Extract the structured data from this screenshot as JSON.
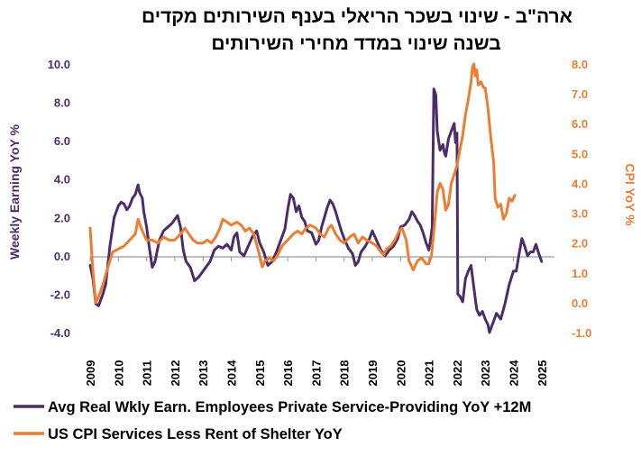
{
  "chart_data": {
    "type": "line",
    "title_lines": [
      "ארה\"ב - שינוי בשכר הריאלי בענף השירותים מקדים",
      "בשנה שינוי במדד מחירי השירותים"
    ],
    "ylabel_left": "Weekly Earning YoY %",
    "ylabel_right": "CPI YoY %",
    "ylim_left": [
      -4,
      10
    ],
    "ylim_right": [
      -1,
      8
    ],
    "yticks_left": [
      "10.0",
      "8.0",
      "6.0",
      "4.0",
      "2.0",
      "0.0",
      "-2.0",
      "-4.0"
    ],
    "yticks_right": [
      "8.0",
      "7.0",
      "6.0",
      "5.0",
      "4.0",
      "3.0",
      "2.0",
      "1.0",
      "0.0",
      "-1.0"
    ],
    "xlim": [
      2009,
      2025.3
    ],
    "xticks": [
      "2009",
      "2010",
      "2011",
      "2012",
      "2013",
      "2014",
      "2015",
      "2016",
      "2017",
      "2018",
      "2019",
      "2020",
      "2021",
      "2022",
      "2023",
      "2024",
      "2025"
    ],
    "grid": false,
    "legend_position": "bottom",
    "series": [
      {
        "name": "Avg Real Wkly Earn. Employees Private Service-Providing YoY +12M",
        "axis": "left",
        "color": "#4a2d6b",
        "points": [
          [
            2009.0,
            -0.5
          ],
          [
            2009.1,
            -1.2
          ],
          [
            2009.2,
            -2.5
          ],
          [
            2009.3,
            -2.6
          ],
          [
            2009.45,
            -2.0
          ],
          [
            2009.55,
            -1.5
          ],
          [
            2009.7,
            0.5
          ],
          [
            2009.85,
            2.0
          ],
          [
            2010.0,
            2.6
          ],
          [
            2010.1,
            2.8
          ],
          [
            2010.2,
            2.7
          ],
          [
            2010.3,
            2.4
          ],
          [
            2010.4,
            2.6
          ],
          [
            2010.5,
            3.0
          ],
          [
            2010.6,
            3.2
          ],
          [
            2010.7,
            3.7
          ],
          [
            2010.75,
            3.3
          ],
          [
            2010.85,
            3.0
          ],
          [
            2010.9,
            2.3
          ],
          [
            2011.0,
            1.5
          ],
          [
            2011.1,
            0.4
          ],
          [
            2011.2,
            -0.6
          ],
          [
            2011.3,
            -0.3
          ],
          [
            2011.45,
            0.8
          ],
          [
            2011.6,
            1.3
          ],
          [
            2011.75,
            1.5
          ],
          [
            2011.9,
            1.7
          ],
          [
            2012.0,
            1.9
          ],
          [
            2012.1,
            2.1
          ],
          [
            2012.2,
            1.5
          ],
          [
            2012.3,
            0.3
          ],
          [
            2012.4,
            -0.3
          ],
          [
            2012.55,
            -0.6
          ],
          [
            2012.7,
            -1.3
          ],
          [
            2012.85,
            -1.1
          ],
          [
            2013.0,
            -0.8
          ],
          [
            2013.1,
            -0.6
          ],
          [
            2013.25,
            -0.3
          ],
          [
            2013.4,
            0.3
          ],
          [
            2013.55,
            0.5
          ],
          [
            2013.7,
            0.4
          ],
          [
            2013.85,
            0.6
          ],
          [
            2014.0,
            0.3
          ],
          [
            2014.1,
            1.0
          ],
          [
            2014.2,
            1.2
          ],
          [
            2014.3,
            0.2
          ],
          [
            2014.45,
            0.0
          ],
          [
            2014.6,
            0.5
          ],
          [
            2014.75,
            1.0
          ],
          [
            2014.9,
            1.3
          ],
          [
            2015.0,
            0.7
          ],
          [
            2015.15,
            0.2
          ],
          [
            2015.3,
            -0.5
          ],
          [
            2015.45,
            -0.3
          ],
          [
            2015.6,
            0.2
          ],
          [
            2015.75,
            0.8
          ],
          [
            2015.9,
            1.4
          ],
          [
            2016.0,
            2.4
          ],
          [
            2016.1,
            3.2
          ],
          [
            2016.2,
            3.0
          ],
          [
            2016.3,
            2.3
          ],
          [
            2016.4,
            2.6
          ],
          [
            2016.5,
            2.0
          ],
          [
            2016.6,
            1.8
          ],
          [
            2016.7,
            1.3
          ],
          [
            2016.85,
            1.2
          ],
          [
            2017.0,
            0.6
          ],
          [
            2017.1,
            0.8
          ],
          [
            2017.2,
            1.5
          ],
          [
            2017.3,
            2.0
          ],
          [
            2017.4,
            2.5
          ],
          [
            2017.5,
            2.9
          ],
          [
            2017.6,
            2.7
          ],
          [
            2017.7,
            2.3
          ],
          [
            2017.8,
            1.8
          ],
          [
            2017.9,
            1.3
          ],
          [
            2018.0,
            0.9
          ],
          [
            2018.15,
            0.4
          ],
          [
            2018.3,
            0.1
          ],
          [
            2018.4,
            -0.5
          ],
          [
            2018.5,
            -0.3
          ],
          [
            2018.6,
            0.2
          ],
          [
            2018.75,
            0.5
          ],
          [
            2018.9,
            0.9
          ],
          [
            2019.0,
            1.3
          ],
          [
            2019.15,
            0.8
          ],
          [
            2019.3,
            0.3
          ],
          [
            2019.45,
            0.0
          ],
          [
            2019.6,
            0.3
          ],
          [
            2019.75,
            0.5
          ],
          [
            2019.9,
            0.9
          ],
          [
            2020.0,
            1.5
          ],
          [
            2020.15,
            1.6
          ],
          [
            2020.3,
            1.9
          ],
          [
            2020.4,
            2.3
          ],
          [
            2020.5,
            2.1
          ],
          [
            2020.6,
            1.8
          ],
          [
            2020.7,
            1.6
          ],
          [
            2020.8,
            1.2
          ],
          [
            2020.9,
            0.7
          ],
          [
            2021.0,
            0.3
          ],
          [
            2021.05,
            0.7
          ],
          [
            2021.12,
            1.5
          ],
          [
            2021.18,
            8.7
          ],
          [
            2021.25,
            8.4
          ],
          [
            2021.3,
            6.5
          ],
          [
            2021.4,
            5.5
          ],
          [
            2021.5,
            5.8
          ],
          [
            2021.55,
            5.4
          ],
          [
            2021.6,
            5.2
          ],
          [
            2021.7,
            6.1
          ],
          [
            2021.8,
            6.5
          ],
          [
            2021.9,
            6.9
          ],
          [
            2021.95,
            5.9
          ],
          [
            2022.0,
            6.4
          ],
          [
            2022.03,
            -2.0
          ],
          [
            2022.1,
            -2.1
          ],
          [
            2022.2,
            -2.4
          ],
          [
            2022.3,
            -1.2
          ],
          [
            2022.4,
            -0.8
          ],
          [
            2022.5,
            -0.5
          ],
          [
            2022.6,
            -1.7
          ],
          [
            2022.7,
            -2.8
          ],
          [
            2022.8,
            -3.1
          ],
          [
            2022.9,
            -2.9
          ],
          [
            2023.0,
            -3.3
          ],
          [
            2023.1,
            -3.6
          ],
          [
            2023.15,
            -4.0
          ],
          [
            2023.25,
            -3.6
          ],
          [
            2023.4,
            -3.0
          ],
          [
            2023.55,
            -3.3
          ],
          [
            2023.7,
            -2.5
          ],
          [
            2023.85,
            -1.5
          ],
          [
            2024.0,
            -0.8
          ],
          [
            2024.1,
            -0.8
          ],
          [
            2024.2,
            0.1
          ],
          [
            2024.3,
            0.9
          ],
          [
            2024.4,
            0.5
          ],
          [
            2024.5,
            0.0
          ],
          [
            2024.6,
            0.2
          ],
          [
            2024.7,
            0.2
          ],
          [
            2024.8,
            0.6
          ],
          [
            2024.9,
            0.1
          ],
          [
            2025.0,
            -0.3
          ]
        ]
      },
      {
        "name": "US CPI  Services Less Rent of Shelter YoY",
        "axis": "right",
        "color": "#ed7d31",
        "points": [
          [
            2009.0,
            2.5
          ],
          [
            2009.08,
            1.3
          ],
          [
            2009.15,
            0.5
          ],
          [
            2009.2,
            0.0
          ],
          [
            2009.3,
            0.2
          ],
          [
            2009.45,
            0.6
          ],
          [
            2009.6,
            1.1
          ],
          [
            2009.8,
            1.7
          ],
          [
            2010.0,
            1.8
          ],
          [
            2010.2,
            1.9
          ],
          [
            2010.4,
            2.1
          ],
          [
            2010.6,
            2.3
          ],
          [
            2010.7,
            2.8
          ],
          [
            2010.85,
            2.4
          ],
          [
            2011.0,
            2.1
          ],
          [
            2011.2,
            2.1
          ],
          [
            2011.4,
            2.0
          ],
          [
            2011.6,
            2.2
          ],
          [
            2011.8,
            2.1
          ],
          [
            2012.0,
            2.1
          ],
          [
            2012.2,
            2.3
          ],
          [
            2012.35,
            2.5
          ],
          [
            2012.5,
            2.3
          ],
          [
            2012.65,
            2.1
          ],
          [
            2012.8,
            2.0
          ],
          [
            2013.0,
            2.0
          ],
          [
            2013.15,
            2.1
          ],
          [
            2013.3,
            2.0
          ],
          [
            2013.45,
            2.2
          ],
          [
            2013.6,
            2.5
          ],
          [
            2013.7,
            2.8
          ],
          [
            2013.85,
            2.7
          ],
          [
            2014.0,
            2.6
          ],
          [
            2014.2,
            2.7
          ],
          [
            2014.35,
            2.6
          ],
          [
            2014.5,
            2.4
          ],
          [
            2014.65,
            2.5
          ],
          [
            2014.8,
            2.3
          ],
          [
            2015.0,
            1.6
          ],
          [
            2015.1,
            1.2
          ],
          [
            2015.2,
            1.4
          ],
          [
            2015.35,
            1.5
          ],
          [
            2015.5,
            1.4
          ],
          [
            2015.65,
            1.6
          ],
          [
            2015.8,
            1.9
          ],
          [
            2016.0,
            2.1
          ],
          [
            2016.2,
            2.3
          ],
          [
            2016.35,
            2.4
          ],
          [
            2016.5,
            2.3
          ],
          [
            2016.65,
            2.5
          ],
          [
            2016.8,
            2.6
          ],
          [
            2017.0,
            2.5
          ],
          [
            2017.15,
            2.3
          ],
          [
            2017.3,
            2.2
          ],
          [
            2017.45,
            2.5
          ],
          [
            2017.55,
            2.6
          ],
          [
            2017.7,
            2.3
          ],
          [
            2017.85,
            2.1
          ],
          [
            2018.0,
            2.0
          ],
          [
            2018.2,
            2.2
          ],
          [
            2018.35,
            2.3
          ],
          [
            2018.5,
            2.0
          ],
          [
            2018.65,
            2.2
          ],
          [
            2018.8,
            2.1
          ],
          [
            2019.0,
            2.0
          ],
          [
            2019.15,
            1.9
          ],
          [
            2019.3,
            1.7
          ],
          [
            2019.4,
            1.6
          ],
          [
            2019.5,
            1.8
          ],
          [
            2019.65,
            1.9
          ],
          [
            2019.8,
            2.1
          ],
          [
            2019.95,
            2.4
          ],
          [
            2020.05,
            2.5
          ],
          [
            2020.2,
            2.1
          ],
          [
            2020.3,
            1.4
          ],
          [
            2020.45,
            1.1
          ],
          [
            2020.6,
            1.4
          ],
          [
            2020.75,
            1.5
          ],
          [
            2020.9,
            1.3
          ],
          [
            2021.0,
            1.3
          ],
          [
            2021.1,
            1.6
          ],
          [
            2021.2,
            2.6
          ],
          [
            2021.3,
            3.7
          ],
          [
            2021.4,
            4.0
          ],
          [
            2021.5,
            3.8
          ],
          [
            2021.6,
            3.1
          ],
          [
            2021.7,
            3.3
          ],
          [
            2021.8,
            4.0
          ],
          [
            2021.9,
            4.3
          ],
          [
            2022.0,
            4.6
          ],
          [
            2022.1,
            5.1
          ],
          [
            2022.2,
            5.6
          ],
          [
            2022.3,
            6.3
          ],
          [
            2022.4,
            6.8
          ],
          [
            2022.5,
            7.4
          ],
          [
            2022.55,
            7.9
          ],
          [
            2022.6,
            8.0
          ],
          [
            2022.65,
            7.6
          ],
          [
            2022.7,
            7.8
          ],
          [
            2022.75,
            7.3
          ],
          [
            2022.85,
            7.4
          ],
          [
            2022.95,
            7.2
          ],
          [
            2023.0,
            7.2
          ],
          [
            2023.1,
            6.5
          ],
          [
            2023.2,
            5.5
          ],
          [
            2023.3,
            4.7
          ],
          [
            2023.35,
            3.5
          ],
          [
            2023.45,
            3.2
          ],
          [
            2023.55,
            3.3
          ],
          [
            2023.65,
            2.8
          ],
          [
            2023.75,
            3.0
          ],
          [
            2023.85,
            3.5
          ],
          [
            2023.95,
            3.4
          ],
          [
            2024.05,
            3.6
          ]
        ]
      }
    ]
  }
}
